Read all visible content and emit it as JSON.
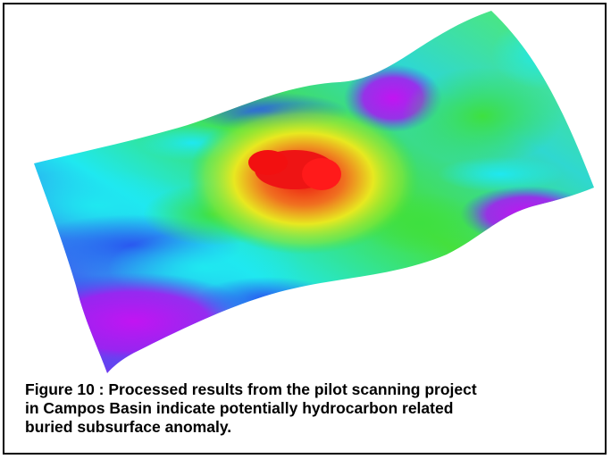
{
  "caption": {
    "line1": "Figure 10 : Processed results from the pilot scanning project",
    "line2": "in Campos Basin indicate potentially hydrocarbon related",
    "line3": "buried subsurface anomaly."
  },
  "image": {
    "icon": "3d-surface-plot",
    "colors": {
      "magenta": "#c214f2",
      "blue": "#3d5cf0",
      "cyan": "#1fe8f0",
      "green": "#46e03c",
      "yellow": "#e8e820",
      "orange": "#f2a020",
      "red": "#ee1010",
      "frame": "#000000",
      "caption_text": "#000000"
    }
  }
}
